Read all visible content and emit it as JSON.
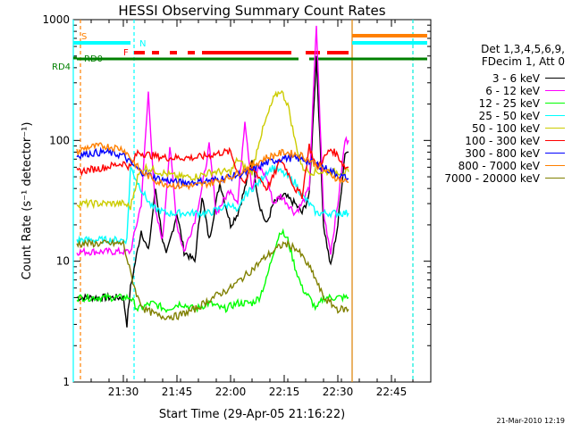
{
  "chart_data": {
    "type": "line",
    "title": "HESSI Observing Summary Count Rates",
    "xlabel": "Start Time (29-Apr-05 21:16:22)",
    "ylabel": "Count Rate (s⁻¹ detector⁻¹)",
    "yscale": "log",
    "ylim": [
      1,
      1000
    ],
    "xlim": [
      "21:16",
      "22:56"
    ],
    "x_ticks": [
      "21:30",
      "21:45",
      "22:00",
      "22:15",
      "22:30",
      "22:45"
    ],
    "y_ticks": [
      "1",
      "10",
      "100",
      "1000"
    ],
    "grid": false,
    "legend_placement": "right",
    "legend_header": [
      "Det 1,3,4,5,6,9,",
      "FDecim 1, Att 0"
    ],
    "series": [
      {
        "name": "3 - 6 keV",
        "color": "#000000",
        "points": [
          [
            "21:17",
            5
          ],
          [
            "21:25",
            5
          ],
          [
            "21:30",
            5
          ],
          [
            "21:31",
            3
          ],
          [
            "21:32",
            6
          ],
          [
            "21:35",
            18
          ],
          [
            "21:37",
            12
          ],
          [
            "21:39",
            40
          ],
          [
            "21:41",
            15
          ],
          [
            "21:42",
            11
          ],
          [
            "21:45",
            25
          ],
          [
            "21:47",
            12
          ],
          [
            "21:50",
            10
          ],
          [
            "21:52",
            35
          ],
          [
            "21:54",
            15
          ],
          [
            "21:57",
            45
          ],
          [
            "22:00",
            20
          ],
          [
            "22:02",
            25
          ],
          [
            "22:04",
            40
          ],
          [
            "22:06",
            70
          ],
          [
            "22:08",
            30
          ],
          [
            "22:10",
            20
          ],
          [
            "22:12",
            30
          ],
          [
            "22:15",
            35
          ],
          [
            "22:18",
            30
          ],
          [
            "22:20",
            25
          ],
          [
            "22:22",
            35
          ],
          [
            "22:24",
            500
          ],
          [
            "22:26",
            20
          ],
          [
            "22:28",
            9
          ],
          [
            "22:30",
            20
          ],
          [
            "22:32",
            80
          ],
          [
            "22:33",
            80
          ]
        ]
      },
      {
        "name": "6 - 12 keV",
        "color": "#ff00ff",
        "points": [
          [
            "21:17",
            12
          ],
          [
            "21:25",
            12
          ],
          [
            "21:30",
            12
          ],
          [
            "21:32",
            12
          ],
          [
            "21:35",
            30
          ],
          [
            "21:37",
            250
          ],
          [
            "21:39",
            25
          ],
          [
            "21:41",
            15
          ],
          [
            "21:43",
            90
          ],
          [
            "21:45",
            20
          ],
          [
            "21:47",
            12
          ],
          [
            "21:50",
            22
          ],
          [
            "21:52",
            40
          ],
          [
            "21:54",
            90
          ],
          [
            "21:56",
            25
          ],
          [
            "22:00",
            40
          ],
          [
            "22:02",
            30
          ],
          [
            "22:04",
            150
          ],
          [
            "22:06",
            40
          ],
          [
            "22:08",
            60
          ],
          [
            "22:10",
            50
          ],
          [
            "22:12",
            30
          ],
          [
            "22:14",
            35
          ],
          [
            "22:16",
            30
          ],
          [
            "22:18",
            25
          ],
          [
            "22:20",
            30
          ],
          [
            "22:22",
            40
          ],
          [
            "22:24",
            900
          ],
          [
            "22:26",
            25
          ],
          [
            "22:28",
            12
          ],
          [
            "22:30",
            30
          ],
          [
            "22:32",
            100
          ],
          [
            "22:33",
            100
          ]
        ]
      },
      {
        "name": "12 - 25 keV",
        "color": "#00ff00",
        "points": [
          [
            "21:17",
            5
          ],
          [
            "21:25",
            5
          ],
          [
            "21:30",
            5
          ],
          [
            "21:32",
            5
          ],
          [
            "21:34",
            4
          ],
          [
            "21:38",
            4.5
          ],
          [
            "21:42",
            4
          ],
          [
            "21:46",
            4.5
          ],
          [
            "21:50",
            4
          ],
          [
            "21:54",
            4.5
          ],
          [
            "21:58",
            4
          ],
          [
            "22:02",
            4.5
          ],
          [
            "22:06",
            4.5
          ],
          [
            "22:08",
            5
          ],
          [
            "22:10",
            7
          ],
          [
            "22:12",
            12
          ],
          [
            "22:14",
            18
          ],
          [
            "22:16",
            15
          ],
          [
            "22:18",
            9
          ],
          [
            "22:20",
            6
          ],
          [
            "22:22",
            5
          ],
          [
            "22:24",
            4
          ],
          [
            "22:26",
            5
          ],
          [
            "22:28",
            5
          ],
          [
            "22:30",
            5
          ],
          [
            "22:32",
            5
          ],
          [
            "22:33",
            5
          ]
        ]
      },
      {
        "name": "25 - 50 keV",
        "color": "#00ffff",
        "points": [
          [
            "21:17",
            15
          ],
          [
            "21:25",
            15
          ],
          [
            "21:30",
            15
          ],
          [
            "21:31",
            15
          ],
          [
            "21:32",
            60
          ],
          [
            "21:34",
            45
          ],
          [
            "21:36",
            35
          ],
          [
            "21:38",
            28
          ],
          [
            "21:42",
            25
          ],
          [
            "21:46",
            25
          ],
          [
            "21:50",
            25
          ],
          [
            "21:54",
            25
          ],
          [
            "21:58",
            28
          ],
          [
            "22:00",
            30
          ],
          [
            "22:02",
            25
          ],
          [
            "22:04",
            35
          ],
          [
            "22:06",
            40
          ],
          [
            "22:08",
            45
          ],
          [
            "22:10",
            55
          ],
          [
            "22:12",
            60
          ],
          [
            "22:14",
            55
          ],
          [
            "22:16",
            50
          ],
          [
            "22:18",
            45
          ],
          [
            "22:20",
            35
          ],
          [
            "22:22",
            30
          ],
          [
            "22:24",
            25
          ],
          [
            "22:26",
            25
          ],
          [
            "22:28",
            25
          ],
          [
            "22:30",
            25
          ],
          [
            "22:32",
            25
          ],
          [
            "22:33",
            25
          ]
        ]
      },
      {
        "name": "50 - 100 keV",
        "color": "#cccc00",
        "points": [
          [
            "21:17",
            30
          ],
          [
            "21:25",
            30
          ],
          [
            "21:30",
            30
          ],
          [
            "21:32",
            28
          ],
          [
            "21:34",
            50
          ],
          [
            "21:36",
            60
          ],
          [
            "21:40",
            55
          ],
          [
            "21:45",
            50
          ],
          [
            "21:50",
            50
          ],
          [
            "21:55",
            55
          ],
          [
            "22:00",
            55
          ],
          [
            "22:02",
            70
          ],
          [
            "22:04",
            60
          ],
          [
            "22:06",
            55
          ],
          [
            "22:08",
            100
          ],
          [
            "22:10",
            150
          ],
          [
            "22:12",
            220
          ],
          [
            "22:14",
            260
          ],
          [
            "22:16",
            200
          ],
          [
            "22:18",
            100
          ],
          [
            "22:20",
            60
          ],
          [
            "22:22",
            55
          ],
          [
            "22:26",
            55
          ],
          [
            "22:30",
            55
          ],
          [
            "22:33",
            55
          ]
        ]
      },
      {
        "name": "100 - 300 keV",
        "color": "#ff0000",
        "points": [
          [
            "21:17",
            55
          ],
          [
            "21:25",
            60
          ],
          [
            "21:30",
            65
          ],
          [
            "21:32",
            60
          ],
          [
            "21:34",
            80
          ],
          [
            "21:38",
            75
          ],
          [
            "21:42",
            72
          ],
          [
            "21:46",
            72
          ],
          [
            "21:50",
            72
          ],
          [
            "21:54",
            75
          ],
          [
            "21:58",
            80
          ],
          [
            "22:00",
            80
          ],
          [
            "22:02",
            55
          ],
          [
            "22:04",
            45
          ],
          [
            "22:06",
            60
          ],
          [
            "22:08",
            50
          ],
          [
            "22:10",
            40
          ],
          [
            "22:12",
            50
          ],
          [
            "22:14",
            70
          ],
          [
            "22:16",
            55
          ],
          [
            "22:18",
            40
          ],
          [
            "22:20",
            35
          ],
          [
            "22:22",
            90
          ],
          [
            "22:24",
            60
          ],
          [
            "22:26",
            70
          ],
          [
            "22:28",
            85
          ],
          [
            "22:30",
            75
          ],
          [
            "22:32",
            60
          ],
          [
            "22:33",
            60
          ]
        ]
      },
      {
        "name": "300 - 800 keV",
        "color": "#0000ff",
        "points": [
          [
            "21:17",
            75
          ],
          [
            "21:20",
            78
          ],
          [
            "21:25",
            80
          ],
          [
            "21:30",
            75
          ],
          [
            "21:32",
            65
          ],
          [
            "21:35",
            55
          ],
          [
            "21:40",
            48
          ],
          [
            "21:45",
            45
          ],
          [
            "21:50",
            45
          ],
          [
            "21:55",
            47
          ],
          [
            "22:00",
            50
          ],
          [
            "22:05",
            55
          ],
          [
            "22:10",
            65
          ],
          [
            "22:15",
            72
          ],
          [
            "22:20",
            70
          ],
          [
            "22:25",
            62
          ],
          [
            "22:30",
            52
          ],
          [
            "22:33",
            48
          ]
        ]
      },
      {
        "name": "800 - 7000 keV",
        "color": "#ff8000",
        "points": [
          [
            "21:17",
            80
          ],
          [
            "21:20",
            88
          ],
          [
            "21:25",
            90
          ],
          [
            "21:30",
            85
          ],
          [
            "21:32",
            72
          ],
          [
            "21:35",
            55
          ],
          [
            "21:40",
            45
          ],
          [
            "21:45",
            42
          ],
          [
            "21:50",
            42
          ],
          [
            "21:55",
            45
          ],
          [
            "22:00",
            50
          ],
          [
            "22:05",
            60
          ],
          [
            "22:10",
            72
          ],
          [
            "22:15",
            80
          ],
          [
            "22:20",
            75
          ],
          [
            "22:25",
            60
          ],
          [
            "22:30",
            48
          ],
          [
            "22:33",
            45
          ]
        ]
      },
      {
        "name": "7000 - 20000 keV",
        "color": "#808000",
        "points": [
          [
            "21:17",
            14
          ],
          [
            "21:25",
            14
          ],
          [
            "21:30",
            14
          ],
          [
            "21:32",
            8
          ],
          [
            "21:34",
            5
          ],
          [
            "21:36",
            4
          ],
          [
            "21:40",
            3.5
          ],
          [
            "21:45",
            3.5
          ],
          [
            "21:50",
            4
          ],
          [
            "21:55",
            5
          ],
          [
            "22:00",
            6
          ],
          [
            "22:05",
            8
          ],
          [
            "22:10",
            11
          ],
          [
            "22:15",
            14
          ],
          [
            "22:18",
            13
          ],
          [
            "22:20",
            11
          ],
          [
            "22:23",
            8
          ],
          [
            "22:26",
            5
          ],
          [
            "22:30",
            4
          ],
          [
            "22:33",
            4
          ]
        ]
      }
    ],
    "flags": {
      "S": {
        "label": "S",
        "color": "#ff8000",
        "segments": [
          [
            "22:34",
            "22:55"
          ]
        ]
      },
      "N": {
        "label": "N",
        "color": "#00ffff",
        "segments": [
          [
            "21:16",
            "21:32"
          ],
          [
            "22:34",
            "22:55"
          ]
        ]
      },
      "F": {
        "label": "F",
        "color": "#ff0000",
        "segments": [
          [
            "21:33",
            "21:36"
          ],
          [
            "21:38",
            "21:40"
          ],
          [
            "21:43",
            "21:45"
          ],
          [
            "21:48",
            "21:50"
          ],
          [
            "21:52",
            "22:17"
          ],
          [
            "22:21",
            "22:25"
          ],
          [
            "22:27",
            "22:33"
          ]
        ]
      },
      "RD0": {
        "label": "RD0",
        "color": "#008000",
        "segments": [
          [
            "21:16",
            "21:17"
          ]
        ]
      },
      "RD4": {
        "label": "RD4",
        "color": "#008000",
        "segments": [
          [
            "21:17",
            "21:33"
          ],
          [
            "21:33",
            "22:02"
          ],
          [
            "22:02",
            "22:19"
          ],
          [
            "22:22",
            "22:55"
          ]
        ]
      }
    },
    "vertical_markers": [
      {
        "time": "21:16",
        "color": "#00ffff",
        "style": "solid"
      },
      {
        "time": "21:18",
        "color": "#ff8000",
        "style": "dashed"
      },
      {
        "time": "21:33",
        "color": "#00ffff",
        "style": "dashed"
      },
      {
        "time": "22:34",
        "color": "#00ffff",
        "style": "solid"
      },
      {
        "time": "22:34",
        "color": "#ff8000",
        "style": "solid"
      },
      {
        "time": "22:51",
        "color": "#ff8000",
        "style": "dashed"
      },
      {
        "time": "22:51",
        "color": "#00ffff",
        "style": "dashed"
      }
    ],
    "timestamp": "21-Mar-2010 12:19"
  }
}
